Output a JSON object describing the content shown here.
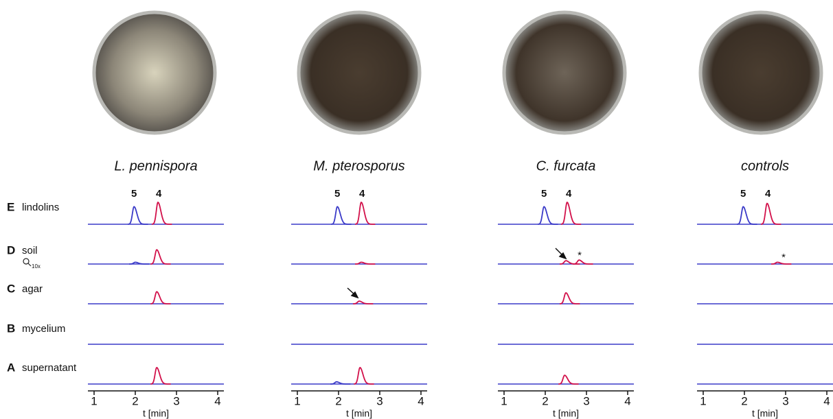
{
  "rows": [
    {
      "letter": "E",
      "name": "lindolins"
    },
    {
      "letter": "D",
      "name": "soil",
      "note": "10x"
    },
    {
      "letter": "C",
      "name": "agar"
    },
    {
      "letter": "B",
      "name": "mycelium"
    },
    {
      "letter": "A",
      "name": "supernatant"
    }
  ],
  "chart_data": [
    {
      "type": "line",
      "title": "L. pennispora",
      "x_label": "t [min]",
      "xlim": [
        0.85,
        4.15
      ],
      "xticks": [
        1,
        2,
        3,
        4
      ],
      "ylim": [
        0,
        100
      ],
      "colors": {
        "red": "#d2104a",
        "blue": "#3a3ac8"
      },
      "peak_labels": [
        {
          "text": "5",
          "x": 1.97,
          "color": "#3a3ac8"
        },
        {
          "text": "4",
          "x": 2.57,
          "color": "#d2104a"
        }
      ],
      "traces": [
        {
          "red": [
            {
              "x": 2.55,
              "height": 100
            }
          ],
          "blue": [
            {
              "x": 1.97,
              "height": 80
            }
          ]
        },
        {
          "red": [
            {
              "x": 2.52,
              "height": 65
            }
          ],
          "blue": [
            {
              "x": 2.0,
              "height": 8
            }
          ]
        },
        {
          "red": [
            {
              "x": 2.52,
              "height": 55
            }
          ],
          "blue": []
        },
        {
          "red": [],
          "blue": []
        },
        {
          "red": [
            {
              "x": 2.52,
              "height": 75
            }
          ],
          "blue": []
        }
      ]
    },
    {
      "type": "line",
      "title": "M. pterosporus",
      "x_label": "t [min]",
      "xlim": [
        0.85,
        4.15
      ],
      "xticks": [
        1,
        2,
        3,
        4
      ],
      "ylim": [
        0,
        100
      ],
      "colors": {
        "red": "#d2104a",
        "blue": "#3a3ac8"
      },
      "peak_labels": [
        {
          "text": "5",
          "x": 1.97,
          "color": "#3a3ac8"
        },
        {
          "text": "4",
          "x": 2.57,
          "color": "#d2104a"
        }
      ],
      "traces": [
        {
          "red": [
            {
              "x": 2.55,
              "height": 100
            }
          ],
          "blue": [
            {
              "x": 1.97,
              "height": 80
            }
          ]
        },
        {
          "red": [
            {
              "x": 2.55,
              "height": 8
            }
          ],
          "blue": []
        },
        {
          "red": [
            {
              "x": 2.5,
              "height": 12
            }
          ],
          "blue": []
        },
        {
          "red": [],
          "blue": []
        },
        {
          "red": [
            {
              "x": 2.52,
              "height": 75
            }
          ],
          "blue": [
            {
              "x": 1.95,
              "height": 10
            }
          ]
        }
      ]
    },
    {
      "type": "line",
      "title": "C. furcata",
      "x_label": "t [min]",
      "xlim": [
        0.85,
        4.15
      ],
      "xticks": [
        1,
        2,
        3,
        4
      ],
      "ylim": [
        0,
        100
      ],
      "colors": {
        "red": "#d2104a",
        "blue": "#3a3ac8"
      },
      "peak_labels": [
        {
          "text": "5",
          "x": 1.97,
          "color": "#3a3ac8"
        },
        {
          "text": "4",
          "x": 2.57,
          "color": "#d2104a"
        }
      ],
      "traces": [
        {
          "red": [
            {
              "x": 2.53,
              "height": 100
            }
          ],
          "blue": [
            {
              "x": 1.97,
              "height": 80
            }
          ]
        },
        {
          "red": [
            {
              "x": 2.5,
              "height": 15
            },
            {
              "x": 2.82,
              "height": 18
            }
          ],
          "blue": []
        },
        {
          "red": [
            {
              "x": 2.5,
              "height": 50
            }
          ],
          "blue": []
        },
        {
          "red": [],
          "blue": []
        },
        {
          "red": [
            {
              "x": 2.47,
              "height": 40
            }
          ],
          "blue": []
        }
      ]
    },
    {
      "type": "line",
      "title": "controls",
      "x_label": "t [min]",
      "xlim": [
        0.85,
        4.15
      ],
      "xticks": [
        1,
        2,
        3,
        4
      ],
      "ylim": [
        0,
        100
      ],
      "colors": {
        "red": "#d2104a",
        "blue": "#3a3ac8"
      },
      "peak_labels": [
        {
          "text": "5",
          "x": 1.97,
          "color": "#3a3ac8"
        },
        {
          "text": "4",
          "x": 2.57,
          "color": "#d2104a"
        }
      ],
      "traces": [
        {
          "red": [
            {
              "x": 2.55,
              "height": 95
            }
          ],
          "blue": [
            {
              "x": 1.97,
              "height": 80
            }
          ]
        },
        {
          "red": [
            {
              "x": 2.8,
              "height": 8
            }
          ],
          "blue": []
        },
        {
          "red": [],
          "blue": []
        },
        {
          "red": [],
          "blue": []
        },
        {
          "red": [],
          "blue": []
        }
      ]
    }
  ],
  "asterisks": [
    "*",
    "*"
  ]
}
